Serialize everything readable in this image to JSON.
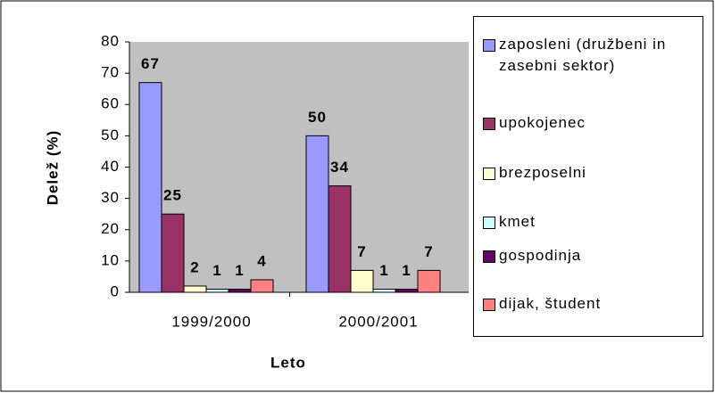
{
  "chart_data": {
    "type": "bar",
    "ylabel": "Delež (%)",
    "xlabel": "Leto",
    "categories": [
      "1999/2000",
      "2000/2001"
    ],
    "series": [
      {
        "name": "zaposleni (družbeni in zasebni sektor)",
        "color": "#9999FF",
        "values": [
          67,
          50
        ]
      },
      {
        "name": "upokojenec",
        "color": "#993366",
        "values": [
          25,
          34
        ]
      },
      {
        "name": "brezposelni",
        "color": "#FFFFCC",
        "values": [
          2,
          7
        ]
      },
      {
        "name": "kmet",
        "color": "#CCFFFF",
        "values": [
          1,
          1
        ]
      },
      {
        "name": "gospodinja",
        "color": "#660066",
        "values": [
          1,
          1
        ]
      },
      {
        "name": "dijak, študent",
        "color": "#FF8080",
        "values": [
          4,
          7
        ]
      }
    ],
    "ylim": [
      0,
      80
    ],
    "yticks": [
      0,
      10,
      20,
      30,
      40,
      50,
      60,
      70,
      80
    ],
    "legend": "right"
  }
}
